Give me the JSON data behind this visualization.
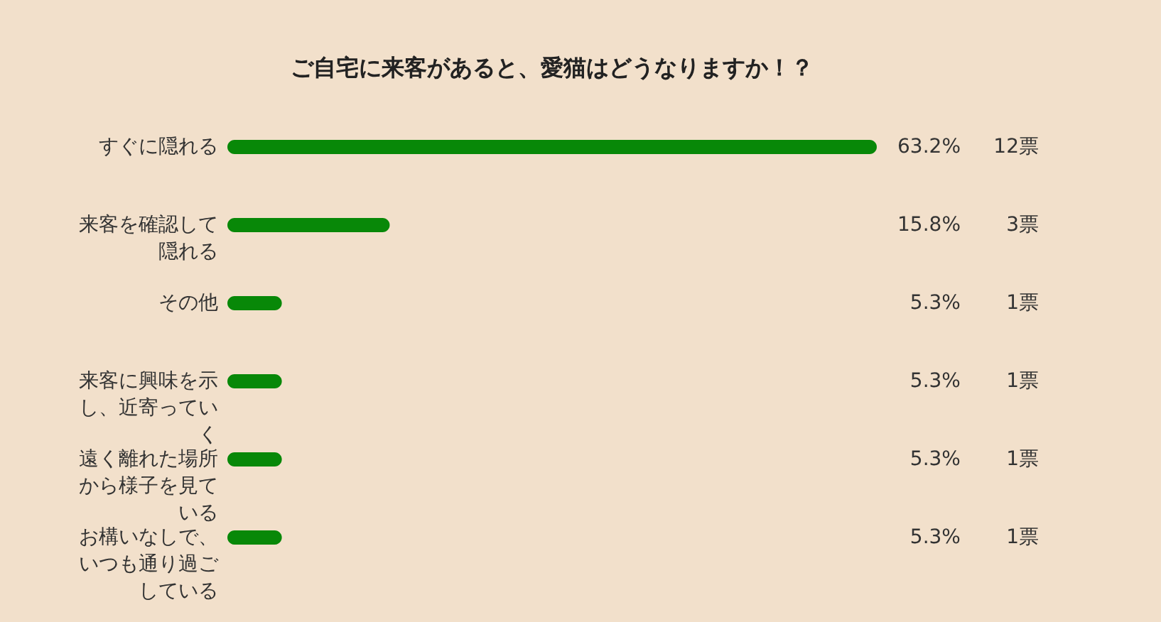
{
  "chart_data": {
    "type": "bar",
    "orientation": "horizontal",
    "title": "ご自宅に来客があると、愛猫はどうなりますか！？",
    "categories": [
      "すぐに隠れる",
      "来客を確認して隠れる",
      "その他",
      "来客に興味を示し、近寄っていく",
      "遠く離れた場所から様子を見ている",
      "お構いなしで、いつも通り過ごしている"
    ],
    "values": [
      63.2,
      15.8,
      5.3,
      5.3,
      5.3,
      5.3
    ],
    "color": "#088808",
    "value_labels": [
      "63.2%",
      "15.8%",
      "5.3%",
      "5.3%",
      "5.3%",
      "5.3%"
    ],
    "annotations": [
      "12票",
      "3票",
      "1票",
      "1票",
      "1票",
      "1票"
    ]
  }
}
